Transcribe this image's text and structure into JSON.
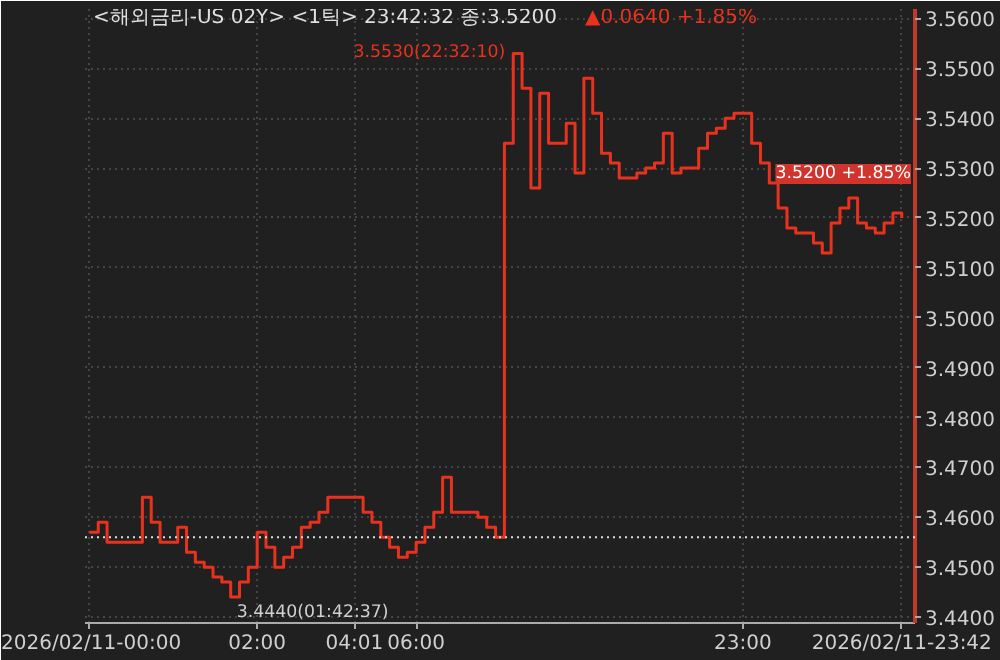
{
  "chart_data": {
    "type": "step",
    "title": "<해외금리-US 02Y> <1틱> 23:42:32 종:3.5200",
    "subtitle": "▲0.0640 +1.85%",
    "categories": [
      "2026/02/11-00:00",
      null,
      null,
      null,
      null,
      null,
      null,
      null,
      null,
      null,
      null,
      null,
      null,
      null,
      null,
      null,
      null,
      null,
      null,
      "02:00",
      null,
      null,
      null,
      null,
      null,
      null,
      null,
      null,
      null,
      null,
      "04:01",
      null,
      null,
      null,
      null,
      null,
      null,
      "06:00",
      null,
      null,
      null,
      null,
      null,
      null,
      null,
      null,
      null,
      null,
      null,
      null,
      null,
      null,
      null,
      null,
      null,
      null,
      null,
      null,
      null,
      null,
      null,
      null,
      null,
      null,
      null,
      null,
      null,
      null,
      null,
      null,
      null,
      null,
      null,
      null,
      "23:00",
      null,
      null,
      null,
      null,
      null,
      null,
      null,
      null,
      null,
      null,
      null,
      null,
      null,
      null,
      null,
      null,
      null,
      "2026/02/11-23:42"
    ],
    "series": [
      {
        "color": "#e8321e",
        "values": [
          3.457,
          3.459,
          3.455,
          3.455,
          3.455,
          3.455,
          3.464,
          3.459,
          3.455,
          3.455,
          3.458,
          3.453,
          3.451,
          3.45,
          3.448,
          3.447,
          3.444,
          3.447,
          3.45,
          3.457,
          3.454,
          3.45,
          3.452,
          3.454,
          3.458,
          3.459,
          3.461,
          3.464,
          3.464,
          3.464,
          3.464,
          3.461,
          3.459,
          3.456,
          3.454,
          3.452,
          3.453,
          3.455,
          3.458,
          3.461,
          3.468,
          3.461,
          3.461,
          3.461,
          3.46,
          3.458,
          3.456,
          3.535,
          3.553,
          3.546,
          3.526,
          3.545,
          3.535,
          3.535,
          3.539,
          3.529,
          3.548,
          3.541,
          3.533,
          3.531,
          3.528,
          3.528,
          3.529,
          3.53,
          3.531,
          3.537,
          3.529,
          3.53,
          3.53,
          3.534,
          3.537,
          3.538,
          3.54,
          3.541,
          3.541,
          3.535,
          3.531,
          3.527,
          3.522,
          3.518,
          3.517,
          3.517,
          3.515,
          3.513,
          3.519,
          3.522,
          3.524,
          3.519,
          3.518,
          3.517,
          3.519,
          3.521,
          3.52
        ]
      }
    ],
    "ylim": [
      3.4388,
      3.5619
    ],
    "yticks": [
      {
        "value": 3.44,
        "label": "3.4400"
      },
      {
        "value": 3.45,
        "label": "3.4500"
      },
      {
        "value": 3.46,
        "label": "3.4600"
      },
      {
        "value": 3.47,
        "label": "3.4700"
      },
      {
        "value": 3.48,
        "label": "3.4800"
      },
      {
        "value": 3.49,
        "label": "3.4900"
      },
      {
        "value": 3.5,
        "label": "3.5000"
      },
      {
        "value": 3.51,
        "label": "3.5100"
      },
      {
        "value": 3.52,
        "label": "3.5200"
      },
      {
        "value": 3.53,
        "label": "3.5300"
      },
      {
        "value": 3.54,
        "label": "3.5400"
      },
      {
        "value": 3.55,
        "label": "3.5500"
      },
      {
        "value": 3.56,
        "label": "3.5600"
      }
    ],
    "ref_lines": [
      {
        "axis": "y",
        "value": 3.456,
        "color": "#dddddd",
        "line_style": "dotted"
      }
    ],
    "annotations": [
      "3.5530(22:32:10)",
      "3.4440(01:42:37)",
      "3.5200 +1.85%"
    ],
    "grid": true
  }
}
